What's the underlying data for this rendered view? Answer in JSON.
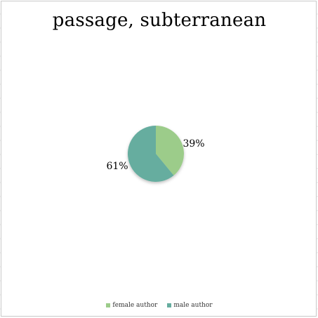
{
  "chart_data": {
    "type": "pie",
    "title": "passage, subterranean",
    "categories": [
      "female author",
      "male author"
    ],
    "values": [
      39,
      61
    ],
    "labels": [
      "39%",
      "61%"
    ],
    "colors": [
      "#9ccc8a",
      "#66ad9f"
    ],
    "legend_position": "bottom"
  }
}
